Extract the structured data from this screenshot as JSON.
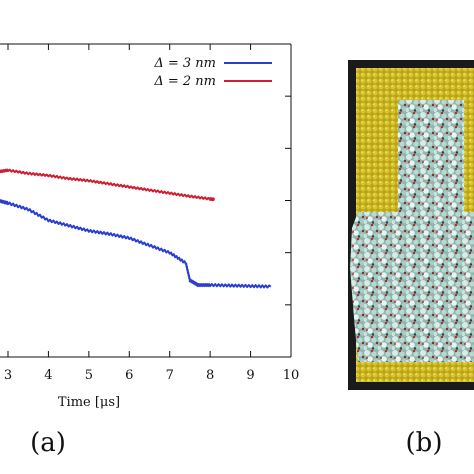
{
  "chart_data": {
    "type": "line",
    "xlabel": "Time [μs]",
    "x_ticks": [
      "3",
      "4",
      "5",
      "6",
      "7",
      "8",
      "9",
      "10"
    ],
    "xlim": [
      2.75,
      10
    ],
    "ylim": [
      0,
      6
    ],
    "grid": false,
    "legend_position": "top-right",
    "series": [
      {
        "name": "Δ = 3 nm",
        "color": "#2a3ed0",
        "x": [
          2.75,
          3.0,
          3.5,
          4.0,
          4.5,
          5.0,
          5.5,
          6.0,
          6.5,
          7.0,
          7.4,
          7.5,
          7.7,
          8.0,
          8.5,
          9.0,
          9.5
        ],
        "y": [
          3.0,
          2.95,
          2.83,
          2.62,
          2.52,
          2.42,
          2.36,
          2.28,
          2.14,
          2.0,
          1.8,
          1.47,
          1.38,
          1.38,
          1.37,
          1.36,
          1.35
        ]
      },
      {
        "name": "Δ = 2 nm",
        "color": "#cc1f33",
        "x": [
          2.75,
          3.0,
          3.5,
          4.0,
          4.5,
          5.0,
          5.5,
          6.0,
          6.5,
          7.0,
          7.5,
          8.0,
          8.1
        ],
        "y": [
          3.55,
          3.58,
          3.52,
          3.48,
          3.42,
          3.38,
          3.32,
          3.26,
          3.2,
          3.14,
          3.08,
          3.03,
          3.02
        ]
      }
    ]
  },
  "panels": {
    "a_label": "(a)",
    "b_label": "(b)"
  },
  "colors": {
    "axis": "#111111",
    "frame_dark": "#1a1a1a",
    "wall": "#c9b316",
    "fluid": "#9fc7c0"
  }
}
